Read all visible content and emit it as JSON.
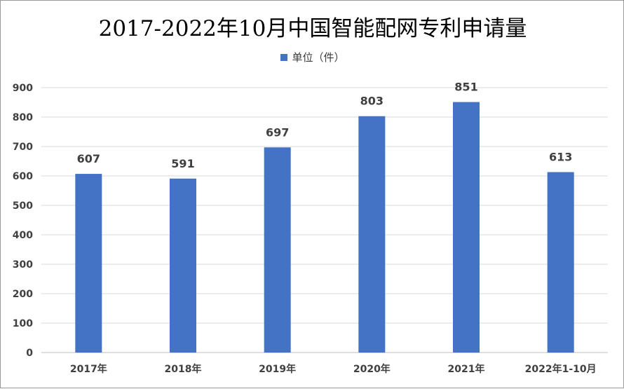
{
  "chart_data": {
    "type": "bar",
    "title": "2017-2022年10月中国智能配网专利申请量",
    "legend": "单位（件）",
    "legend_position": "top",
    "categories": [
      "2017年",
      "2018年",
      "2019年",
      "2020年",
      "2021年",
      "2022年1-10月"
    ],
    "series": [
      {
        "name": "单位（件）",
        "values": [
          607,
          591,
          697,
          803,
          851,
          613
        ]
      }
    ],
    "ylim": [
      0,
      900
    ],
    "yticks": [
      0,
      100,
      200,
      300,
      400,
      500,
      600,
      700,
      800,
      900
    ],
    "grid": true,
    "colors": {
      "bar": "#4472C4",
      "grid": "#d9d9d9",
      "axis": "#bfbfbf",
      "text": "#404040"
    }
  }
}
